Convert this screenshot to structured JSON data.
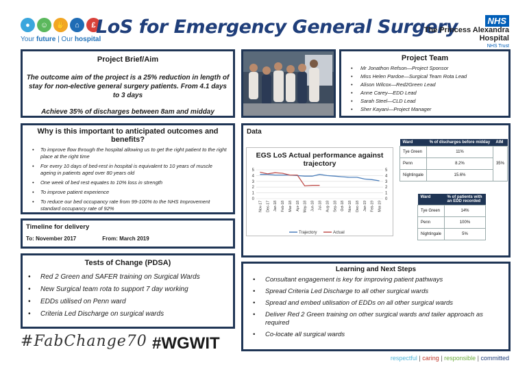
{
  "header": {
    "title": "LoS for Emergency General Surgery",
    "tagline_a": "Your ",
    "tagline_b": "future",
    "tagline_c": " | Our ",
    "tagline_d": "hospital",
    "nhs": "NHS",
    "hospital_line1": "The Princess Alexandra",
    "hospital_line2": "Hospital",
    "trust": "NHS Trust",
    "logo_colors": [
      "#3aa6dd",
      "#5bb85d",
      "#f2a623",
      "#1f6cb5",
      "#d9413a"
    ]
  },
  "brief": {
    "title": "Project Brief/Aim",
    "aim": "The outcome aim of the project is a 25% reduction in length of stay for non-elective general surgery patients. From 4.1 days to 3 days",
    "achieve": "Achieve 35% of discharges between 8am and midday"
  },
  "team": {
    "title": "Project Team",
    "members": [
      "Mr Jonathon Refson—Project Sponsor",
      "Miss Helen Pardoe—Surgical Team Rota Lead",
      "Alison Wilcox—Red2Green Lead",
      "Anne Carey—EDD Lead",
      "Sarah Steel—CLD Lead",
      "Sher Kayani—Project Manager"
    ]
  },
  "why": {
    "title": "Why is this important to anticipated outcomes and benefits?",
    "points": [
      "To improve flow through the hospital allowing us to get the right patient to the right place at the right time",
      "For every 10 days of bed-rest in hospital is equivalent to 10 years of muscle ageing in patients aged over 80 years old",
      "One week of bed rest equates to 10% loss in strength",
      "To improve patient experience",
      "To reduce our bed occupancy rate from 99-100% to the NHS Improvement standard occupancy rate of 92%"
    ]
  },
  "timeline": {
    "title": "Timeline for delivery",
    "to": "To: November 2017",
    "from": "From: March 2019"
  },
  "tests": {
    "title": "Tests of Change (PDSA)",
    "items": [
      "Red 2 Green and SAFER training on Surgical Wards",
      "New Surgical team rota to support 7 day working",
      "EDDs utilised on Penn ward",
      "Criteria Led Discharge on surgical wards"
    ]
  },
  "data": {
    "title": "Data",
    "table1": {
      "headers": [
        "Ward",
        "% of discharges before midday",
        "AIM"
      ],
      "rows": [
        [
          "Tye Green",
          "11%"
        ],
        [
          "Penn",
          "8.2%"
        ],
        [
          "Nightingale",
          "15.6%"
        ]
      ],
      "aim": "35%"
    },
    "table2": {
      "headers": [
        "Ward",
        "% of patients with an EDD recorded"
      ],
      "rows": [
        [
          "Tye Green",
          "14%"
        ],
        [
          "Penn",
          "100%"
        ],
        [
          "Nightingale",
          "5%"
        ]
      ]
    }
  },
  "chart_data": {
    "type": "line",
    "title": "EGS LoS Actual performance against trajectory",
    "categories": [
      "Nov-17",
      "Dec-17",
      "Jan-18",
      "Feb-18",
      "Mar-18",
      "Apr-18",
      "May-18",
      "Jun-18",
      "Jul-18",
      "Aug-18",
      "Sep-18",
      "Oct-18",
      "Nov-18",
      "Dec-18",
      "Jan-19",
      "Feb-19",
      "Mar-19"
    ],
    "series": [
      {
        "name": "Trajectory",
        "color": "#4a7ebb",
        "values": [
          4.2,
          4.2,
          4.1,
          4.1,
          4.1,
          4.0,
          3.9,
          3.9,
          4.2,
          4.0,
          3.9,
          3.8,
          3.7,
          3.7,
          3.4,
          3.3,
          3.1
        ]
      },
      {
        "name": "Actual",
        "color": "#c0504d",
        "values": [
          4.6,
          4.3,
          4.5,
          4.4,
          4.1,
          4.1,
          2.2,
          2.3,
          2.3,
          null,
          null,
          null,
          null,
          null,
          null,
          null,
          null
        ]
      }
    ],
    "ylim": [
      0,
      5
    ],
    "yticks": [
      "0",
      "1",
      "2",
      "3",
      "4",
      "5"
    ],
    "grid": true,
    "legend": "bottom"
  },
  "learn": {
    "title": "Learning and Next Steps",
    "items": [
      "Consultant engagement is key for improving patient pathways",
      "Spread Criteria Led Discharge to all other surgical wards",
      "Spread and embed utilisation of EDDs on all other surgical wards",
      "Deliver Red 2 Green training on other surgical wards and tailer approach as required",
      "Co-locate all surgical wards"
    ]
  },
  "footer": {
    "fab": "#FabChange70",
    "wgwit": "#WGWIT",
    "v1": "respectful",
    "v2": "caring",
    "v3": "responsible",
    "v4": "committed",
    "sep": " | "
  }
}
